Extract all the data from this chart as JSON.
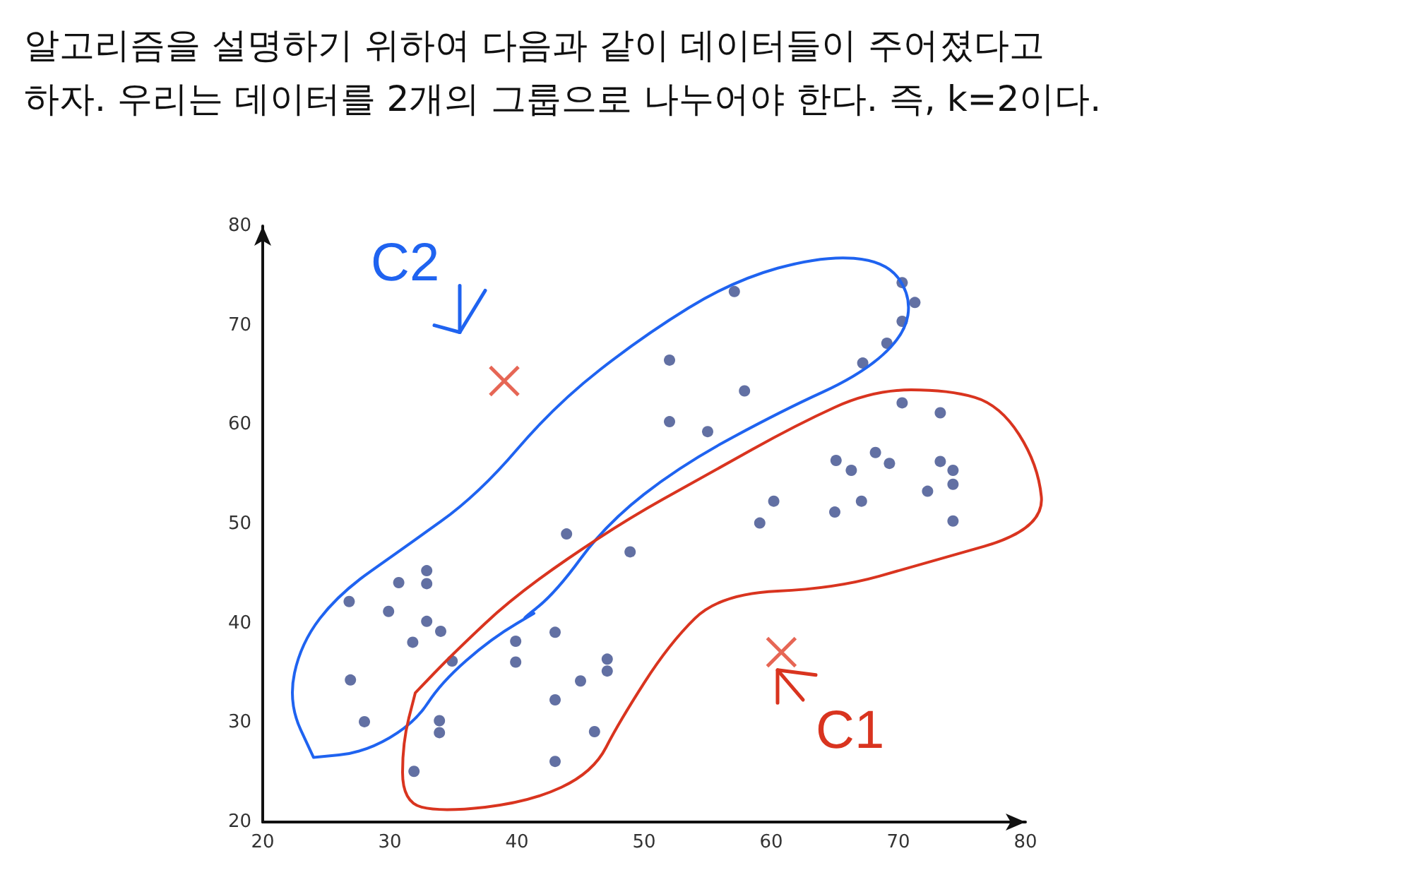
{
  "chart_data": {
    "type": "scatter",
    "title": "알고리즘을 설명하기 위하여 다음과 같이 데이터들이 주어졌다고\n하자. 우리는 데이터를 2개의 그룹으로 나누어야 한다. 즉, k=2이다.",
    "annotations": [
      "C2",
      "C1"
    ],
    "xlim": [
      20,
      80
    ],
    "xticks": [
      20,
      30,
      40,
      50,
      60,
      70,
      80
    ],
    "ylim": [
      20,
      80
    ],
    "yticks": [
      20,
      30,
      40,
      50,
      60,
      70,
      80
    ],
    "grid": false,
    "series": [
      {
        "marker": "circle",
        "color": "#3b4c8c",
        "x": [
          26.8,
          26.9,
          28.0,
          29.9,
          30.7,
          31.8,
          32.9,
          32.9,
          32.9,
          34.0,
          34.9,
          33.9,
          33.9,
          31.9,
          39.9,
          39.9,
          43.0,
          43.9,
          43.0,
          43.0,
          45.0,
          46.1,
          47.1,
          47.1,
          48.9,
          57.1,
          52.0,
          52.0,
          57.9,
          55.0,
          70.3,
          71.3,
          70.3,
          69.1,
          67.2,
          70.3,
          73.3,
          65.1,
          66.3,
          68.2,
          69.3,
          73.3,
          74.3,
          74.3,
          72.3,
          60.2,
          59.1,
          65.0,
          67.1,
          74.3
        ],
        "values": [
          42.2,
          34.3,
          30.1,
          41.2,
          44.1,
          38.1,
          45.3,
          44.0,
          40.2,
          39.2,
          36.2,
          30.2,
          29.0,
          25.1,
          38.2,
          36.1,
          39.1,
          49.0,
          32.3,
          26.1,
          34.2,
          29.1,
          36.4,
          35.2,
          47.2,
          73.4,
          66.5,
          60.3,
          63.4,
          59.3,
          74.3,
          72.3,
          70.4,
          68.2,
          66.2,
          62.2,
          61.2,
          56.4,
          55.4,
          57.2,
          56.1,
          56.3,
          55.4,
          54.0,
          53.3,
          52.3,
          50.1,
          51.2,
          52.3,
          50.3
        ]
      },
      {
        "marker": "cross",
        "color": "#e0402a",
        "x": [
          39.0,
          60.8
        ],
        "values": [
          64.4,
          37.1
        ]
      }
    ]
  }
}
